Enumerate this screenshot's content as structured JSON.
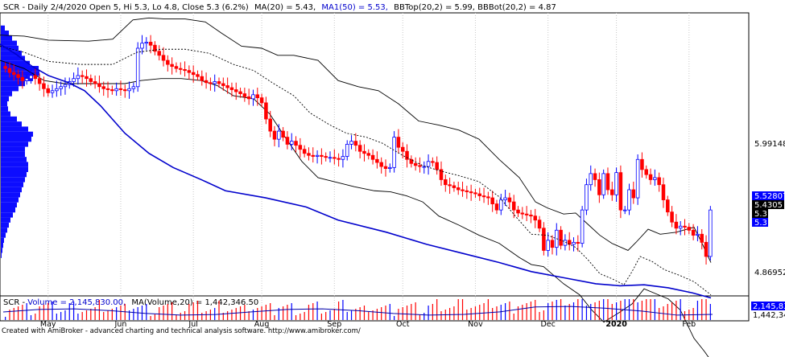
{
  "header": {
    "price_prefix": "SCR - Daily 2/4/2020 Open 5, Hi 5.3, Lo 4.8, Close 5.3 (6.2%)",
    "ma20": "MA(20) = 5.43,",
    "ma50": "MA1(50) = 5.53,",
    "bbands": "BBTop(20,2) = 5.99, BBBot(20,2) = 4.87",
    "volume_prefix": "SCR - ",
    "volume_label": "Volume = 2,145,830.00,",
    "volume_ma": "MA(Volume,20) = 1,442,346.50"
  },
  "footer": "Created with AmiBroker - advanced charting and technical analysis software. http://www.amibroker.com/",
  "axis_tags": {
    "bbtop": "5.99148",
    "ma50": "5.52807",
    "ma20": "5.4305",
    "close": "5.3",
    "close2": "5.3",
    "bbbot": "4.86952",
    "vol": "2,145,830",
    "vol_ma": "1,442,347"
  },
  "colors": {
    "up": "#0000ff",
    "down": "#ff0000",
    "ma50": "#0000cc",
    "bands": "#000000",
    "ma20": "#000000",
    "profile": "#0000ff",
    "ma_volume": "#0000aa",
    "grid": "#c8c8c8"
  },
  "chart_data": {
    "type": "candlestick",
    "price_range_visible": [
      4.45,
      7.25
    ],
    "x_tick_labels": [
      "May",
      "Jun",
      "Jul",
      "Aug",
      "Sep",
      "Oct",
      "Nov",
      "Dec",
      "2020",
      "Feb"
    ],
    "y_tick_labels": [
      "5.99148",
      "5.52807",
      "5.4305",
      "5.3",
      "5.3",
      "4.86952"
    ],
    "volume_tick_labels": [
      "2,145,830",
      "1,442,347"
    ],
    "grid": true,
    "last_bar": {
      "date": "2/4/2020",
      "open": 5.0,
      "high": 5.3,
      "low": 4.8,
      "close": 5.3,
      "change_pct": 6.2,
      "ma20": 5.43,
      "ma50": 5.53,
      "bbtop": 5.99,
      "bbbot": 4.87,
      "volume": 2145830,
      "volume_ma20": 1442346.5
    },
    "close_series": [
      6.7,
      6.66,
      6.64,
      6.61,
      6.58,
      6.6,
      6.63,
      6.6,
      6.55,
      6.5,
      6.46,
      6.48,
      6.5,
      6.52,
      6.54,
      6.57,
      6.6,
      6.63,
      6.62,
      6.6,
      6.57,
      6.55,
      6.52,
      6.5,
      6.49,
      6.48,
      6.5,
      6.49,
      6.48,
      6.5,
      6.52,
      6.9,
      6.95,
      6.96,
      6.93,
      6.87,
      6.83,
      6.78,
      6.74,
      6.72,
      6.7,
      6.69,
      6.68,
      6.66,
      6.64,
      6.62,
      6.58,
      6.56,
      6.55,
      6.57,
      6.55,
      6.53,
      6.51,
      6.49,
      6.47,
      6.45,
      6.42,
      6.4,
      6.44,
      6.41,
      6.36,
      6.2,
      6.08,
      6.0,
      6.08,
      6.02,
      5.95,
      5.98,
      5.94,
      5.9,
      5.86,
      5.84,
      5.83,
      5.84,
      5.83,
      5.82,
      5.82,
      5.81,
      5.8,
      5.83,
      5.95,
      5.98,
      5.94,
      5.88,
      5.86,
      5.84,
      5.8,
      5.77,
      5.73,
      5.71,
      5.72,
      6.02,
      5.92,
      5.88,
      5.8,
      5.76,
      5.74,
      5.73,
      5.73,
      5.78,
      5.77,
      5.7,
      5.6,
      5.55,
      5.54,
      5.52,
      5.5,
      5.49,
      5.48,
      5.47,
      5.46,
      5.44,
      5.43,
      5.42,
      5.36,
      5.3,
      5.4,
      5.42,
      5.38,
      5.3,
      5.27,
      5.26,
      5.25,
      5.24,
      5.2,
      5.12,
      4.9,
      5.0,
      4.93,
      5.1,
      4.95,
      5.0,
      4.96,
      4.98,
      4.97,
      5.3,
      5.55,
      5.66,
      5.6,
      5.45,
      5.66,
      5.5,
      5.45,
      5.67,
      5.3,
      5.3,
      5.5,
      5.42,
      5.8,
      5.7,
      5.65,
      5.6,
      5.62,
      5.55,
      5.4,
      5.28,
      5.18,
      5.12,
      5.14,
      5.13,
      5.1,
      5.05,
      5.06,
      4.98,
      4.84,
      5.3
    ],
    "ma50_series": [
      [
        0,
        6.94
      ],
      [
        20,
        6.84
      ],
      [
        40,
        6.72
      ],
      [
        60,
        6.63
      ],
      [
        85,
        6.56
      ],
      [
        105,
        6.48
      ],
      [
        125,
        6.33
      ],
      [
        155,
        6.06
      ],
      [
        185,
        5.86
      ],
      [
        215,
        5.72
      ],
      [
        250,
        5.6
      ],
      [
        280,
        5.49
      ],
      [
        330,
        5.42
      ],
      [
        380,
        5.33
      ],
      [
        420,
        5.2
      ],
      [
        480,
        5.08
      ],
      [
        530,
        4.96
      ],
      [
        580,
        4.86
      ],
      [
        620,
        4.78
      ],
      [
        660,
        4.69
      ],
      [
        700,
        4.63
      ],
      [
        740,
        4.57
      ],
      [
        770,
        4.55
      ],
      [
        800,
        4.56
      ],
      [
        830,
        4.53
      ],
      [
        860,
        4.48
      ],
      [
        883,
        4.43
      ]
    ],
    "bbtop_series": [
      [
        0,
        7.03
      ],
      [
        30,
        7.02
      ],
      [
        60,
        6.98
      ],
      [
        110,
        6.97
      ],
      [
        140,
        6.99
      ],
      [
        165,
        7.18
      ],
      [
        185,
        7.2
      ],
      [
        205,
        7.19
      ],
      [
        230,
        7.19
      ],
      [
        255,
        7.16
      ],
      [
        275,
        7.05
      ],
      [
        300,
        6.92
      ],
      [
        325,
        6.9
      ],
      [
        345,
        6.83
      ],
      [
        365,
        6.83
      ],
      [
        395,
        6.78
      ],
      [
        420,
        6.58
      ],
      [
        445,
        6.52
      ],
      [
        470,
        6.48
      ],
      [
        495,
        6.35
      ],
      [
        520,
        6.18
      ],
      [
        545,
        6.14
      ],
      [
        570,
        6.09
      ],
      [
        595,
        6.0
      ],
      [
        620,
        5.8
      ],
      [
        645,
        5.62
      ],
      [
        665,
        5.38
      ],
      [
        680,
        5.32
      ],
      [
        700,
        5.26
      ],
      [
        715,
        5.27
      ],
      [
        730,
        5.16
      ],
      [
        745,
        5.05
      ],
      [
        760,
        4.97
      ],
      [
        780,
        4.9
      ],
      [
        790,
        4.98
      ],
      [
        805,
        5.11
      ],
      [
        820,
        5.06
      ],
      [
        840,
        5.08
      ],
      [
        862,
        5.13
      ],
      [
        872,
        4.97
      ],
      [
        883,
        4.78
      ]
    ],
    "bbbot_series": [
      [
        0,
        6.78
      ],
      [
        30,
        6.7
      ],
      [
        55,
        6.58
      ],
      [
        80,
        6.55
      ],
      [
        110,
        6.55
      ],
      [
        135,
        6.55
      ],
      [
        155,
        6.55
      ],
      [
        175,
        6.58
      ],
      [
        200,
        6.6
      ],
      [
        225,
        6.6
      ],
      [
        250,
        6.58
      ],
      [
        270,
        6.53
      ],
      [
        290,
        6.43
      ],
      [
        315,
        6.4
      ],
      [
        335,
        6.25
      ],
      [
        355,
        6.01
      ],
      [
        375,
        5.78
      ],
      [
        395,
        5.62
      ],
      [
        420,
        5.57
      ],
      [
        440,
        5.53
      ],
      [
        465,
        5.49
      ],
      [
        485,
        5.48
      ],
      [
        505,
        5.44
      ],
      [
        525,
        5.38
      ],
      [
        545,
        5.24
      ],
      [
        570,
        5.15
      ],
      [
        595,
        5.05
      ],
      [
        620,
        4.97
      ],
      [
        645,
        4.83
      ],
      [
        660,
        4.76
      ],
      [
        675,
        4.74
      ],
      [
        700,
        4.57
      ],
      [
        720,
        4.46
      ],
      [
        735,
        4.31
      ],
      [
        750,
        4.19
      ],
      [
        770,
        4.29
      ],
      [
        785,
        4.37
      ],
      [
        800,
        4.52
      ],
      [
        815,
        4.47
      ],
      [
        830,
        4.42
      ],
      [
        845,
        4.31
      ],
      [
        862,
        4.03
      ],
      [
        875,
        3.9
      ],
      [
        883,
        3.81
      ]
    ],
    "ma20_series": [
      [
        0,
        6.92
      ],
      [
        30,
        6.86
      ],
      [
        60,
        6.77
      ],
      [
        100,
        6.74
      ],
      [
        140,
        6.74
      ],
      [
        170,
        6.86
      ],
      [
        200,
        6.89
      ],
      [
        230,
        6.89
      ],
      [
        260,
        6.85
      ],
      [
        290,
        6.74
      ],
      [
        315,
        6.68
      ],
      [
        340,
        6.55
      ],
      [
        365,
        6.43
      ],
      [
        385,
        6.26
      ],
      [
        410,
        6.14
      ],
      [
        430,
        6.06
      ],
      [
        455,
        6.02
      ],
      [
        475,
        5.96
      ],
      [
        500,
        5.84
      ],
      [
        525,
        5.74
      ],
      [
        545,
        5.69
      ],
      [
        570,
        5.64
      ],
      [
        595,
        5.58
      ],
      [
        620,
        5.43
      ],
      [
        640,
        5.24
      ],
      [
        660,
        5.06
      ],
      [
        680,
        5.05
      ],
      [
        700,
        4.99
      ],
      [
        715,
        4.93
      ],
      [
        730,
        4.81
      ],
      [
        745,
        4.67
      ],
      [
        760,
        4.62
      ],
      [
        775,
        4.56
      ],
      [
        785,
        4.69
      ],
      [
        795,
        4.84
      ],
      [
        810,
        4.79
      ],
      [
        825,
        4.71
      ],
      [
        845,
        4.65
      ],
      [
        862,
        4.59
      ],
      [
        875,
        4.51
      ],
      [
        883,
        4.46
      ]
    ],
    "volume_profile_rows": [
      [
        7.1,
        5
      ],
      [
        7.05,
        10
      ],
      [
        7.0,
        14
      ],
      [
        6.95,
        20
      ],
      [
        6.9,
        22
      ],
      [
        6.85,
        26
      ],
      [
        6.8,
        30
      ],
      [
        6.75,
        36
      ],
      [
        6.7,
        47
      ],
      [
        6.65,
        48
      ],
      [
        6.6,
        40
      ],
      [
        6.55,
        30
      ],
      [
        6.5,
        22
      ],
      [
        6.45,
        14
      ],
      [
        6.4,
        10
      ],
      [
        6.35,
        8
      ],
      [
        6.3,
        9
      ],
      [
        6.25,
        12
      ],
      [
        6.2,
        20
      ],
      [
        6.15,
        26
      ],
      [
        6.1,
        34
      ],
      [
        6.05,
        40
      ],
      [
        6.0,
        38
      ],
      [
        5.95,
        34
      ],
      [
        5.9,
        30
      ],
      [
        5.85,
        30
      ],
      [
        5.8,
        32
      ],
      [
        5.75,
        34
      ],
      [
        5.7,
        34
      ],
      [
        5.65,
        32
      ],
      [
        5.6,
        30
      ],
      [
        5.55,
        28
      ],
      [
        5.5,
        26
      ],
      [
        5.45,
        24
      ],
      [
        5.4,
        22
      ],
      [
        5.35,
        20
      ],
      [
        5.3,
        18
      ],
      [
        5.25,
        15
      ],
      [
        5.2,
        12
      ],
      [
        5.15,
        10
      ],
      [
        5.1,
        8
      ],
      [
        5.05,
        6
      ],
      [
        5.0,
        4
      ],
      [
        4.95,
        3
      ],
      [
        4.9,
        2
      ],
      [
        4.85,
        1
      ]
    ]
  }
}
